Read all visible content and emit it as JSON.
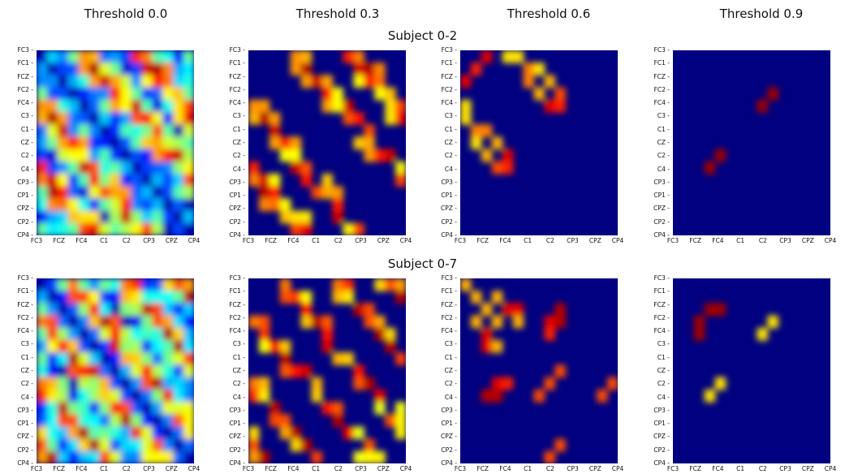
{
  "column_titles": [
    "Threshold 0.0",
    "Threshold 0.3",
    "Threshold 0.6",
    "Threshold 0.9"
  ],
  "row_titles": [
    "Subject 0-2",
    "Subject 0-7"
  ],
  "colors": {
    "background": "#000080",
    "colormap": "jet"
  },
  "chart_data": {
    "type": "heatmap",
    "colormap": "jet",
    "value_range": [
      0,
      1
    ],
    "thresholds": [
      0.0,
      0.3,
      0.6,
      0.9
    ],
    "channels": [
      "FC3",
      "FC1",
      "FCZ",
      "FC2",
      "FC4",
      "C3",
      "C1",
      "CZ",
      "C2",
      "C4",
      "CP3",
      "CP1",
      "CPZ",
      "CP2",
      "CP4"
    ],
    "y_tick_labels": [
      "FC3 -",
      "FC1 -",
      "FCZ -",
      "FC2 -",
      "FC4 -",
      "C3 -",
      "C1 -",
      "CZ -",
      "C2 -",
      "C4 -",
      "CP3 -",
      "CP1 -",
      "CPZ -",
      "CP2 -",
      "CP4 -"
    ],
    "x_tick_labels": [
      "FC3",
      "FCZ",
      "FC4",
      "C1",
      "C2",
      "CP3",
      "CPZ",
      "CP4"
    ],
    "subjects": [
      "Subject 0-2",
      "Subject 0-7"
    ],
    "highlights": {
      "subject_0_2": {
        "t0.6": [
          [
            0,
            2,
            0.9
          ],
          [
            1,
            1,
            0.85
          ],
          [
            0,
            4,
            0.65
          ],
          [
            1,
            6,
            0.75
          ],
          [
            2,
            6,
            0.75
          ],
          [
            3,
            7,
            0.7
          ],
          [
            4,
            8,
            0.9
          ],
          [
            5,
            0,
            0.65
          ],
          [
            7,
            1,
            0.65
          ],
          [
            8,
            2,
            0.7
          ],
          [
            9,
            3,
            0.8
          ],
          [
            8,
            4,
            0.9
          ],
          [
            9,
            4,
            0.85
          ]
        ],
        "t0.9": [
          [
            4,
            8,
            0.97
          ],
          [
            9,
            3,
            0.97
          ]
        ]
      },
      "subject_0_7": {
        "t0.6": [
          [
            0,
            0,
            0.7
          ],
          [
            1,
            1,
            0.7
          ],
          [
            2,
            2,
            0.7
          ],
          [
            3,
            3,
            0.7
          ],
          [
            1,
            3,
            0.7
          ],
          [
            2,
            4,
            0.7
          ],
          [
            3,
            5,
            0.7
          ],
          [
            2,
            5,
            0.9
          ],
          [
            3,
            8,
            0.95
          ],
          [
            4,
            8,
            0.85
          ],
          [
            4,
            2,
            0.9
          ],
          [
            8,
            3,
            0.9
          ],
          [
            9,
            3,
            0.95
          ],
          [
            9,
            2,
            0.95
          ],
          [
            8,
            8,
            0.8
          ],
          [
            9,
            7,
            0.8
          ],
          [
            9,
            13,
            0.8
          ],
          [
            14,
            8,
            0.8
          ]
        ],
        "t0.9": [
          [
            2,
            3,
            0.97
          ],
          [
            4,
            2,
            0.97
          ],
          [
            4,
            8,
            0.65
          ],
          [
            9,
            3,
            0.65
          ]
        ]
      }
    }
  }
}
